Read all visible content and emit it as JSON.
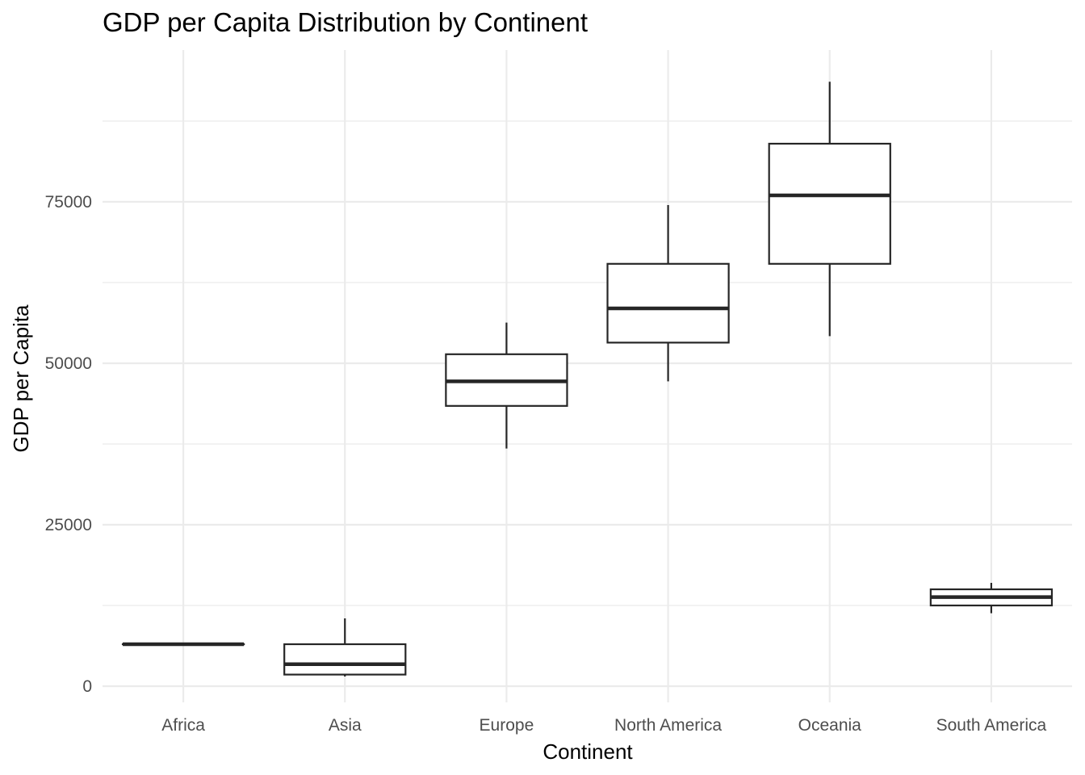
{
  "chart_data": {
    "type": "boxplot",
    "title": "GDP per Capita Distribution by Continent",
    "xlabel": "Continent",
    "ylabel": "GDP per Capita",
    "ylim": [
      -2500,
      98000
    ],
    "yticks": [
      0,
      25000,
      50000,
      75000
    ],
    "grid": true,
    "categories": [
      "Africa",
      "Asia",
      "Europe",
      "North America",
      "Oceania",
      "South America"
    ],
    "boxes": [
      {
        "category": "Africa",
        "min": 6500,
        "q1": 6500,
        "median": 6500,
        "q3": 6500,
        "max": 6500
      },
      {
        "category": "Asia",
        "min": 1500,
        "q1": 1800,
        "median": 3400,
        "q3": 6500,
        "max": 10500
      },
      {
        "category": "Europe",
        "min": 36800,
        "q1": 43400,
        "median": 47200,
        "q3": 51400,
        "max": 56300
      },
      {
        "category": "North America",
        "min": 47200,
        "q1": 53200,
        "median": 58500,
        "q3": 65400,
        "max": 74500
      },
      {
        "category": "Oceania",
        "min": 54200,
        "q1": 65400,
        "median": 76000,
        "q3": 84000,
        "max": 93600
      },
      {
        "category": "South America",
        "min": 11300,
        "q1": 12500,
        "median": 13800,
        "q3": 15000,
        "max": 16000
      }
    ]
  }
}
